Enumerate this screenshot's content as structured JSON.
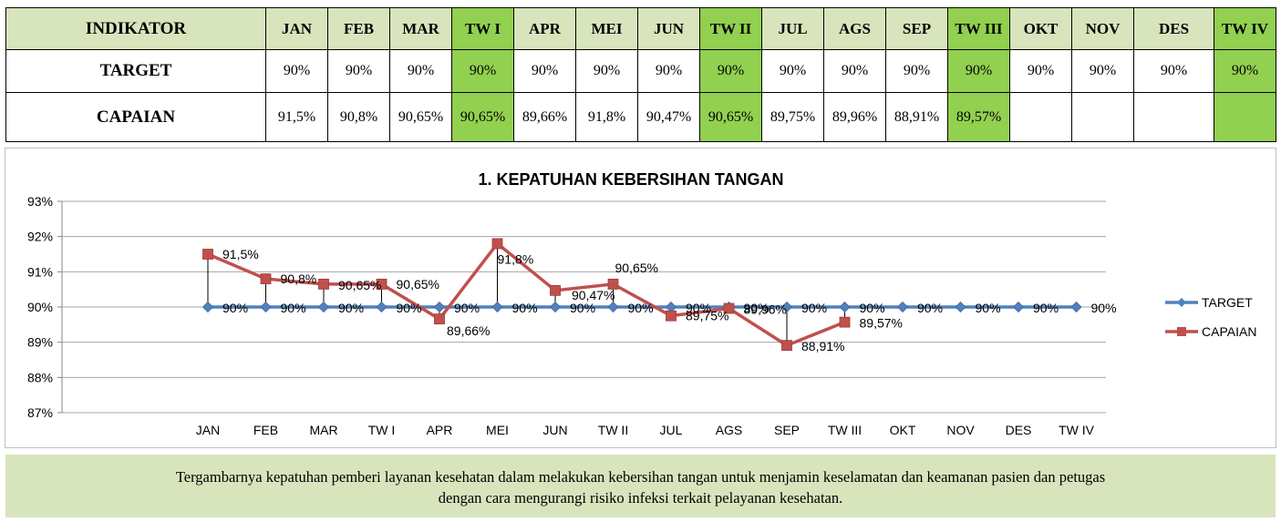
{
  "table": {
    "header_label": "INDIKATOR",
    "columns": [
      "JAN",
      "FEB",
      "MAR",
      "TW I",
      "APR",
      "MEI",
      "JUN",
      "TW II",
      "JUL",
      "AGS",
      "SEP",
      "TW III",
      "OKT",
      "NOV",
      "DES",
      "TW IV"
    ],
    "highlight_columns": [
      3,
      7,
      11,
      15
    ],
    "highlight_color": "#92d050",
    "header_color": "#d8e4bc",
    "rows": [
      {
        "label": "TARGET",
        "values": [
          "90%",
          "90%",
          "90%",
          "90%",
          "90%",
          "90%",
          "90%",
          "90%",
          "90%",
          "90%",
          "90%",
          "90%",
          "90%",
          "90%",
          "90%",
          "90%"
        ]
      },
      {
        "label": "CAPAIAN",
        "values": [
          "91,5%",
          "90,8%",
          "90,65%",
          "90,65%",
          "89,66%",
          "91,8%",
          "90,47%",
          "90,65%",
          "89,75%",
          "89,96%",
          "88,91%",
          "89,57%",
          "",
          "",
          "",
          ""
        ]
      }
    ]
  },
  "chart_data": {
    "type": "line",
    "title": "1. KEPATUHAN KEBERSIHAN TANGAN",
    "categories": [
      "JAN",
      "FEB",
      "MAR",
      "TW I",
      "APR",
      "MEI",
      "JUN",
      "TW II",
      "JUL",
      "AGS",
      "SEP",
      "TW III",
      "OKT",
      "NOV",
      "DES",
      "TW IV"
    ],
    "ylim": [
      87,
      93
    ],
    "yticks": [
      "87%",
      "88%",
      "89%",
      "90%",
      "91%",
      "92%",
      "93%"
    ],
    "grid": true,
    "legend_position": "right",
    "series": [
      {
        "name": "TARGET",
        "color": "#4f81bd",
        "marker": "diamond",
        "values": [
          90,
          90,
          90,
          90,
          90,
          90,
          90,
          90,
          90,
          90,
          90,
          90,
          90,
          90,
          90,
          90
        ],
        "labels": [
          "90%",
          "90%",
          "90%",
          "90%",
          "90%",
          "90%",
          "90%",
          "90%",
          "90%",
          "90%",
          "90%",
          "90%",
          "90%",
          "90%",
          "90%",
          "90%"
        ]
      },
      {
        "name": "CAPAIAN",
        "color": "#c0504d",
        "marker": "square",
        "values": [
          91.5,
          90.8,
          90.65,
          90.65,
          89.66,
          91.8,
          90.47,
          90.65,
          89.75,
          89.96,
          88.91,
          89.57,
          null,
          null,
          null,
          null
        ],
        "labels": [
          "91,5%",
          "90,8%",
          "90,65%",
          "90,65%",
          "89,66%",
          "91,8%",
          "90,47%",
          "90,65%",
          "89,75%",
          "89,96%",
          "88,91%",
          "89,57%",
          "",
          "",
          "",
          ""
        ]
      }
    ]
  },
  "footer": {
    "line1": "Tergambarnya kepatuhan pemberi layanan kesehatan dalam melakukan kebersihan tangan untuk menjamin keselamatan dan keamanan pasien dan petugas",
    "line2": "dengan cara mengurangi risiko infeksi terkait pelayanan kesehatan."
  }
}
